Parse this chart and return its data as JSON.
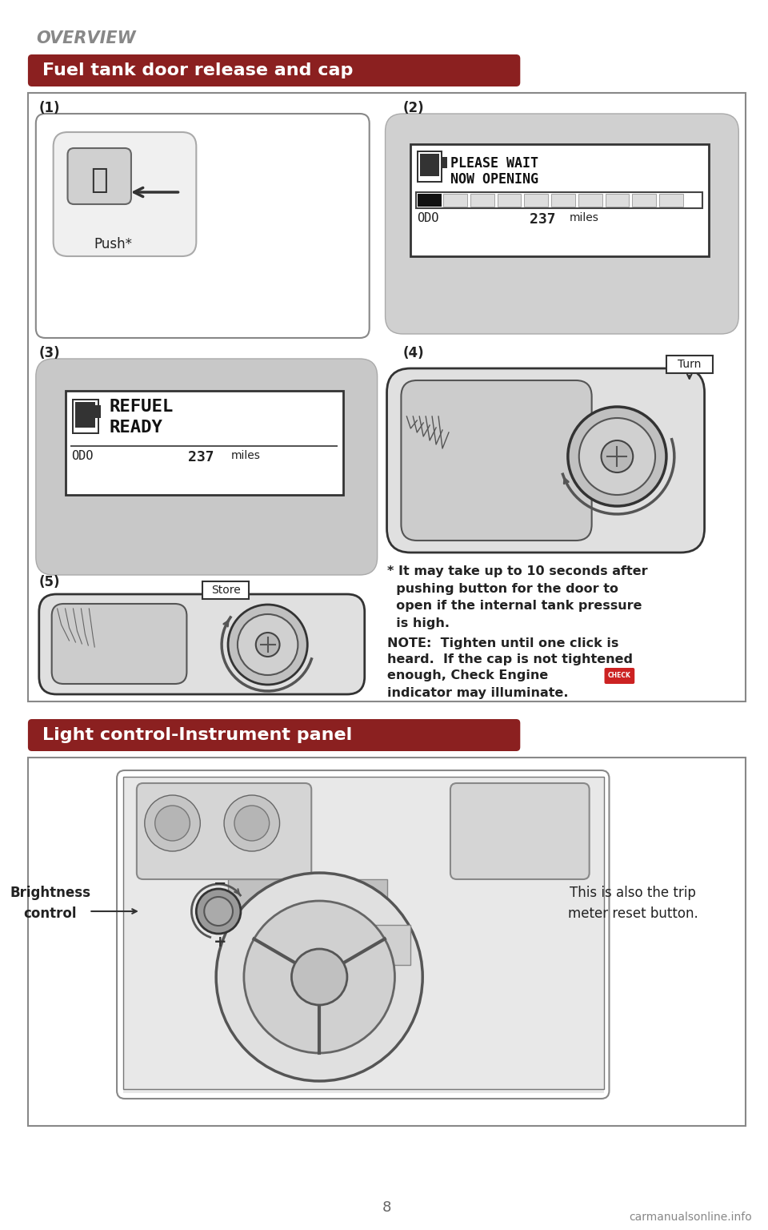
{
  "bg_color": "#ffffff",
  "overview_text": "OVERVIEW",
  "overview_color": "#888888",
  "section1_title": "Fuel tank door release and cap",
  "section1_title_bg": "#8B2020",
  "section1_title_color": "#ffffff",
  "section2_title": "Light control-Instrument panel",
  "section2_title_bg": "#8B2020",
  "section2_title_color": "#ffffff",
  "panel1_label": "(1)",
  "panel2_label": "(2)",
  "panel3_label": "(3)",
  "panel4_label": "(4)",
  "panel5_label": "(5)",
  "push_label": "Push*",
  "turn_label": "Turn",
  "store_label": "Store",
  "please_wait_line1": "PLEASE WAIT",
  "please_wait_line2": "NOW OPENING",
  "refuel_line1": "REFUEL",
  "refuel_line2": "READY",
  "odo_text": "ODO",
  "miles_value": "237",
  "miles_label": "miles",
  "bullet_note": "* It may take up to 10 seconds after\n  pushing button for the door to\n  open if the internal tank pressure\n  is high.",
  "note_line1": "NOTE:  Tighten until one click is",
  "note_line2": "heard.  If the cap is not tightened",
  "note_line3": "enough, Check Engine",
  "note_line4": "indicator may illuminate.",
  "brightness_label": "Brightness\ncontrol",
  "trip_meter_text": "This is also the trip\nmeter reset button.",
  "page_number": "8",
  "footer_text": "carmanualsonline.info",
  "white": "#ffffff",
  "black": "#000000",
  "light_gray": "#e8e8e8",
  "mid_gray": "#c8c8c8",
  "dark_gray": "#555555",
  "border_color": "#444444",
  "section_box_border": "#888888",
  "text_dark": "#222222",
  "note_bold_color": "#333333",
  "red_check": "#cc2222"
}
